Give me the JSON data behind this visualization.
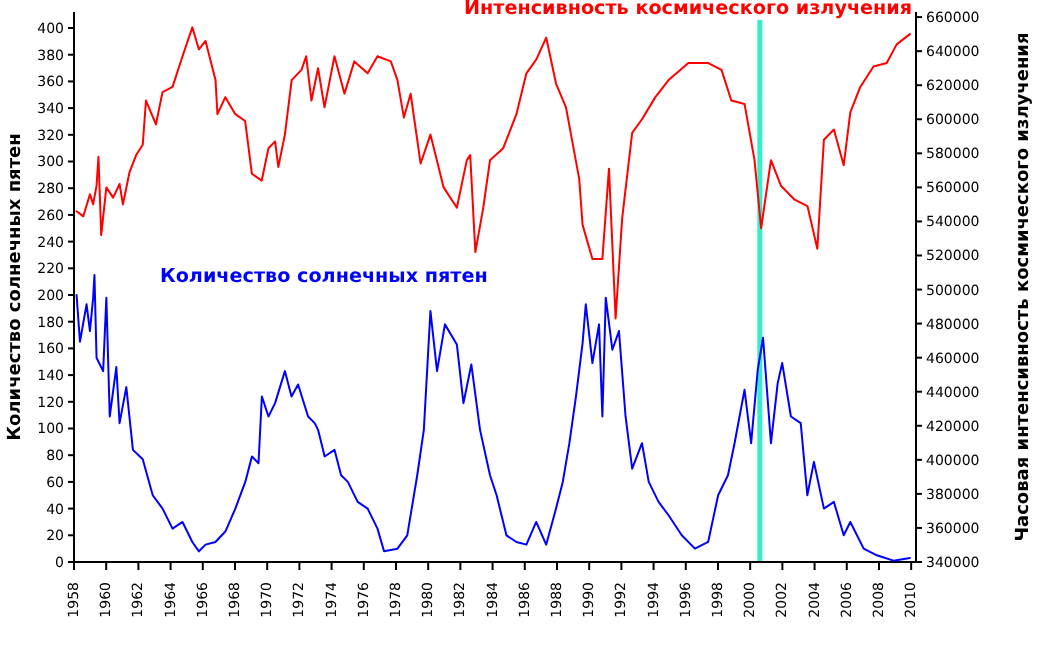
{
  "chart_data": {
    "type": "line",
    "xlabel": null,
    "ylabel": "Количество солнечных пятен",
    "y2label": "Часовая интенсивность космического излучения",
    "xlim": [
      1958,
      2010.3
    ],
    "xticks": [
      1958,
      1960,
      1962,
      1964,
      1966,
      1968,
      1970,
      1972,
      1974,
      1976,
      1978,
      1980,
      1982,
      1984,
      1986,
      1988,
      1990,
      1992,
      1994,
      1996,
      1998,
      2000,
      2002,
      2004,
      2006,
      2008,
      2010
    ],
    "ylim": [
      0,
      412
    ],
    "yticks": [
      0,
      20,
      40,
      60,
      80,
      100,
      120,
      140,
      160,
      180,
      200,
      220,
      240,
      260,
      280,
      300,
      320,
      340,
      360,
      380,
      400
    ],
    "y2lim": [
      340000,
      663000
    ],
    "y2ticks": [
      340000,
      360000,
      380000,
      400000,
      420000,
      440000,
      460000,
      480000,
      500000,
      520000,
      540000,
      560000,
      580000,
      600000,
      620000,
      640000,
      660000
    ],
    "grid": false,
    "legend": false,
    "marker": "none",
    "line_style": "solid",
    "series": [
      {
        "name": "Интенсивность космического излучения",
        "color": "#ff0000",
        "axis": "y2",
        "x": [
          1958.16,
          1958.58,
          1958.99,
          1959.19,
          1959.4,
          1959.52,
          1959.69,
          1960.01,
          1960.43,
          1960.83,
          1961.04,
          1961.45,
          1961.86,
          1962.27,
          1962.47,
          1963.09,
          1963.5,
          1964.12,
          1964.74,
          1965.35,
          1965.76,
          1966.17,
          1966.79,
          1966.91,
          1967.4,
          1968.02,
          1968.63,
          1969.05,
          1969.66,
          1970.08,
          1970.49,
          1970.69,
          1971.1,
          1971.52,
          1972.13,
          1972.42,
          1972.75,
          1973.16,
          1973.56,
          1974.18,
          1974.8,
          1975.41,
          1976.24,
          1976.85,
          1977.68,
          1978.09,
          1978.49,
          1978.91,
          1979.53,
          1980.14,
          1980.96,
          1981.78,
          1982.4,
          1982.61,
          1982.93,
          1983.42,
          1983.84,
          1984.66,
          1985.48,
          1986.1,
          1986.71,
          1987.33,
          1987.94,
          1988.56,
          1989.38,
          1989.59,
          1990.2,
          1990.82,
          1991.23,
          1991.64,
          1992.05,
          1992.67,
          1993.28,
          1994.11,
          1994.93,
          1996.16,
          1997.4,
          1998.22,
          1998.83,
          1999.65,
          2000.27,
          2000.68,
          2001.29,
          2001.91,
          2002.73,
          2003.56,
          2004.17,
          2004.58,
          2005.2,
          2005.81,
          2006.22,
          2006.84,
          2007.66,
          2008.48,
          2009.1,
          2009.92
        ],
        "values": [
          546000,
          543000,
          556000,
          550000,
          561000,
          578000,
          532000,
          560000,
          554000,
          562000,
          550000,
          569000,
          579000,
          585000,
          611000,
          597000,
          616000,
          619000,
          637000,
          654000,
          641000,
          646000,
          623000,
          603000,
          613000,
          603000,
          599000,
          568000,
          564000,
          583000,
          587000,
          572000,
          591000,
          623000,
          629000,
          637000,
          611000,
          630000,
          607000,
          637000,
          615000,
          634000,
          627000,
          637000,
          634000,
          623000,
          601000,
          615000,
          574000,
          591000,
          560000,
          548000,
          576000,
          579000,
          522000,
          548000,
          576000,
          583000,
          603000,
          627000,
          635000,
          648000,
          621000,
          607000,
          565000,
          538000,
          518000,
          518000,
          571000,
          483000,
          542000,
          592000,
          600000,
          613000,
          623000,
          633000,
          633000,
          629000,
          611000,
          609000,
          576000,
          536000,
          576000,
          561000,
          553000,
          549000,
          524000,
          588000,
          594000,
          573000,
          604000,
          619000,
          631000,
          633000,
          644000,
          650000
        ]
      },
      {
        "name": "Количество солнечных пятен",
        "color": "#0000ff",
        "axis": "y",
        "x": [
          1958.16,
          1958.37,
          1958.78,
          1958.99,
          1959.19,
          1959.27,
          1959.4,
          1959.81,
          1960.01,
          1960.22,
          1960.63,
          1960.83,
          1961.25,
          1961.66,
          1962.27,
          1962.89,
          1963.5,
          1964.12,
          1964.74,
          1965.35,
          1965.76,
          1966.17,
          1966.79,
          1967.41,
          1968.02,
          1968.64,
          1969.05,
          1969.46,
          1969.67,
          1970.08,
          1970.49,
          1971.1,
          1971.51,
          1971.92,
          1972.54,
          1972.95,
          1973.16,
          1973.57,
          1974.18,
          1974.59,
          1975.01,
          1975.62,
          1976.24,
          1976.85,
          1977.26,
          1978.09,
          1978.7,
          1979.32,
          1979.73,
          1980.14,
          1980.55,
          1981.04,
          1981.78,
          1982.19,
          1982.68,
          1983.22,
          1983.84,
          1984.25,
          1984.86,
          1985.48,
          1986.1,
          1986.71,
          1987.33,
          1987.94,
          1988.36,
          1988.77,
          1989.18,
          1989.59,
          1989.79,
          1990.2,
          1990.61,
          1990.82,
          1991.03,
          1991.44,
          1991.85,
          1992.26,
          1992.67,
          1993.28,
          1993.7,
          1994.31,
          1994.93,
          1995.75,
          1996.57,
          1997.39,
          1998.01,
          1998.62,
          1999.03,
          1999.65,
          2000.06,
          2000.47,
          2000.8,
          2001.29,
          2001.71,
          2001.99,
          2002.53,
          2003.14,
          2003.55,
          2003.96,
          2004.58,
          2005.2,
          2005.81,
          2006.22,
          2007.05,
          2007.87,
          2008.9,
          2009.92
        ],
        "values": [
          200,
          165,
          193,
          173,
          198,
          215,
          153,
          143,
          198,
          109,
          146,
          104,
          131,
          84,
          77,
          50,
          40,
          25,
          30,
          15,
          8,
          13,
          15,
          23,
          40,
          60,
          79,
          74,
          124,
          109,
          119,
          143,
          124,
          133,
          109,
          104,
          99,
          79,
          84,
          65,
          60,
          45,
          40,
          25,
          8,
          10,
          20,
          65,
          99,
          188,
          143,
          178,
          163,
          119,
          148,
          99,
          65,
          50,
          20,
          15,
          13,
          30,
          13,
          40,
          60,
          89,
          124,
          164,
          193,
          149,
          178,
          109,
          198,
          159,
          173,
          109,
          70,
          89,
          60,
          45,
          35,
          20,
          10,
          15,
          50,
          65,
          89,
          129,
          89,
          144,
          168,
          89,
          134,
          149,
          109,
          104,
          50,
          75,
          40,
          45,
          20,
          30,
          10,
          5,
          1,
          3
        ]
      }
    ],
    "ref_lines": [
      {
        "axis": "x",
        "value": 2000.6,
        "label": null,
        "color": "#33eecc",
        "line_style": "solid"
      }
    ]
  }
}
